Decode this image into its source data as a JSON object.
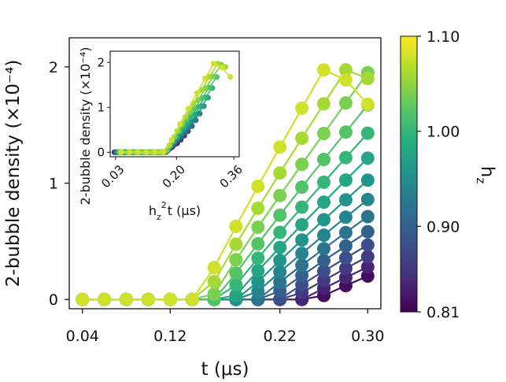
{
  "chart_data": {
    "type": "line",
    "main": {
      "xlabel": "t (μs)",
      "ylabel": "2-bubble density (×10⁻⁴)",
      "xlim": [
        0.028,
        0.312
      ],
      "ylim": [
        -0.08,
        2.25
      ],
      "xticks": [
        0.04,
        0.12,
        0.22,
        0.3
      ],
      "xtick_labels": [
        "0.04",
        "0.12",
        "0.22",
        "0.30"
      ],
      "yticks": [
        0,
        1,
        2
      ],
      "ytick_labels": [
        "0",
        "1",
        "2"
      ],
      "x": [
        0.04,
        0.06,
        0.08,
        0.1,
        0.12,
        0.14,
        0.16,
        0.18,
        0.2,
        0.22,
        0.24,
        0.26,
        0.28,
        0.3
      ]
    },
    "inset": {
      "xlabel": "h_z²t (μs)",
      "xlabel_parts": {
        "base": "h",
        "sub": "z",
        "sup": "2",
        "rest": "t (μs)"
      },
      "ylabel": "2-bubble density (×10⁻⁴)",
      "xticks": [
        0.03,
        0.2,
        0.36
      ],
      "xtick_labels": [
        "0.03",
        "0.20",
        "0.36"
      ],
      "yticks": [
        0,
        1,
        2
      ],
      "ytick_labels": [
        "0",
        "1",
        "2"
      ],
      "xlim": [
        0.015,
        0.375
      ],
      "ylim": [
        -0.1,
        2.25
      ]
    },
    "colorbar": {
      "label": "h_z",
      "label_parts": {
        "base": "h",
        "sub": "z"
      },
      "range": [
        0.81,
        1.1
      ],
      "ticks": [
        0.81,
        0.9,
        1.0,
        1.1
      ],
      "tick_labels": [
        "0.81",
        "0.90",
        "1.00",
        "1.10"
      ],
      "colormap": "viridis"
    },
    "series_hz": [
      0.82,
      0.84,
      0.86,
      0.88,
      0.9,
      0.92,
      0.94,
      0.96,
      0.98,
      1.0,
      1.02,
      1.04,
      1.06,
      1.08
    ]
  }
}
